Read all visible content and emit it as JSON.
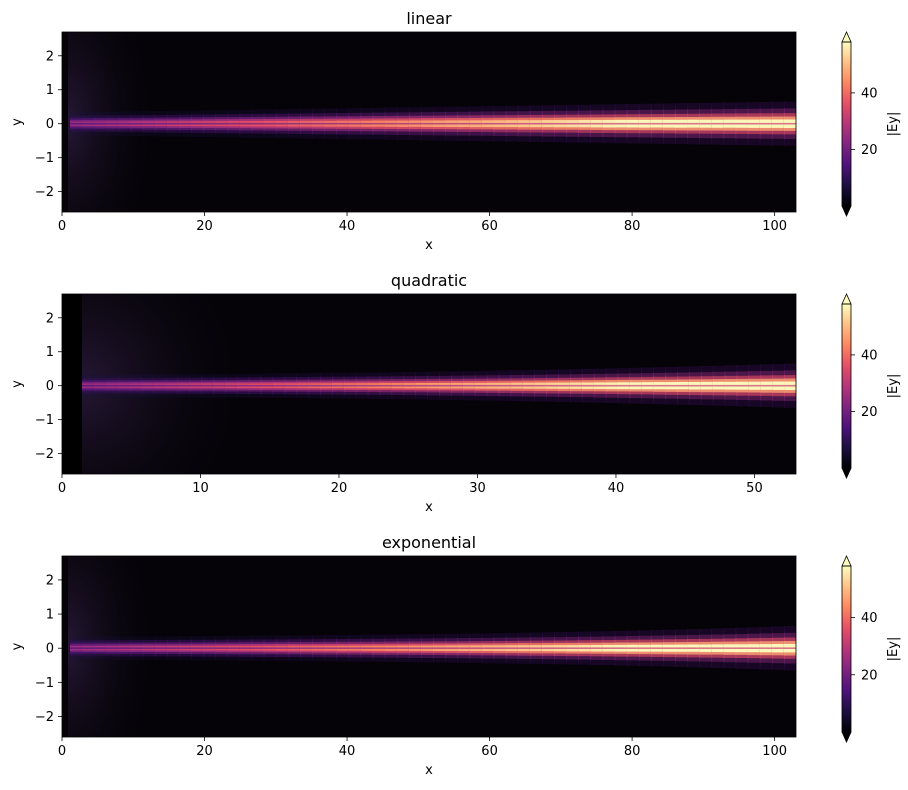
{
  "chart_data": [
    {
      "type": "heatmap",
      "title": "linear",
      "xlabel": "x",
      "ylabel": "y",
      "xlim": [
        0,
        103
      ],
      "ylim": [
        -2.6,
        2.7
      ],
      "xticks": [
        0,
        20,
        40,
        60,
        80,
        100
      ],
      "yticks": [
        -2,
        -1,
        0,
        1,
        2
      ],
      "taper": "linear",
      "colorbar": {
        "label": "|Ey|",
        "ticks": [
          20,
          40
        ],
        "range": [
          0,
          58
        ],
        "extend": "both",
        "colormap": "magma"
      }
    },
    {
      "type": "heatmap",
      "title": "quadratic",
      "xlabel": "x",
      "ylabel": "y",
      "xlim": [
        0,
        53
      ],
      "ylim": [
        -2.6,
        2.7
      ],
      "xticks": [
        0,
        10,
        20,
        30,
        40,
        50
      ],
      "yticks": [
        -2,
        -1,
        0,
        1,
        2
      ],
      "taper": "quadratic",
      "colorbar": {
        "label": "|Ey|",
        "ticks": [
          20,
          40
        ],
        "range": [
          0,
          58
        ],
        "extend": "both",
        "colormap": "magma"
      }
    },
    {
      "type": "heatmap",
      "title": "exponential",
      "xlabel": "x",
      "ylabel": "y",
      "xlim": [
        0,
        103
      ],
      "ylim": [
        -2.6,
        2.7
      ],
      "xticks": [
        0,
        20,
        40,
        60,
        80,
        100
      ],
      "yticks": [
        -2,
        -1,
        0,
        1,
        2
      ],
      "taper": "exponential",
      "colorbar": {
        "label": "|Ey|",
        "ticks": [
          20,
          40
        ],
        "range": [
          0,
          58
        ],
        "extend": "both",
        "colormap": "magma"
      }
    }
  ]
}
